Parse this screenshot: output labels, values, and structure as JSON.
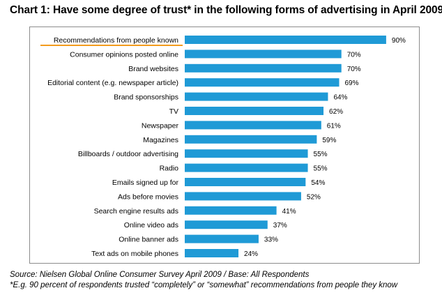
{
  "chart_data": {
    "type": "bar",
    "orientation": "horizontal",
    "title": "Chart 1: Have some degree of trust* in the following forms of advertising in April 2009",
    "categories": [
      "Recommendations from people known",
      "Consumer opinions posted online",
      "Brand websites",
      "Editorial content (e.g. newspaper article)",
      "Brand sponsorships",
      "TV",
      "Newspaper",
      "Magazines",
      "Billboards / outdoor advertising",
      "Radio",
      "Emails signed up for",
      "Ads before movies",
      "Search engine results ads",
      "Online video ads",
      "Online banner ads",
      "Text ads on mobile phones"
    ],
    "values": [
      90,
      70,
      70,
      69,
      64,
      62,
      61,
      59,
      55,
      55,
      54,
      52,
      41,
      37,
      33,
      24
    ],
    "value_labels": [
      "90%",
      "70%",
      "70%",
      "69%",
      "64%",
      "62%",
      "61%",
      "59%",
      "55%",
      "55%",
      "54%",
      "52%",
      "41%",
      "37%",
      "33%",
      "24%"
    ],
    "xlim": [
      0,
      100
    ],
    "unit": "%",
    "grid": false,
    "legend": "none",
    "bar_color": "#1f9ad6",
    "highlight_color": "#f39c1e",
    "highlight_category": "Recommendations from people known"
  },
  "footer": {
    "source": "Source: Nielsen Global Online Consumer Survey April 2009 / Base: All Respondents",
    "note": "*E.g. 90 percent of respondents trusted “completely” or “somewhat” recommendations from people they know"
  }
}
